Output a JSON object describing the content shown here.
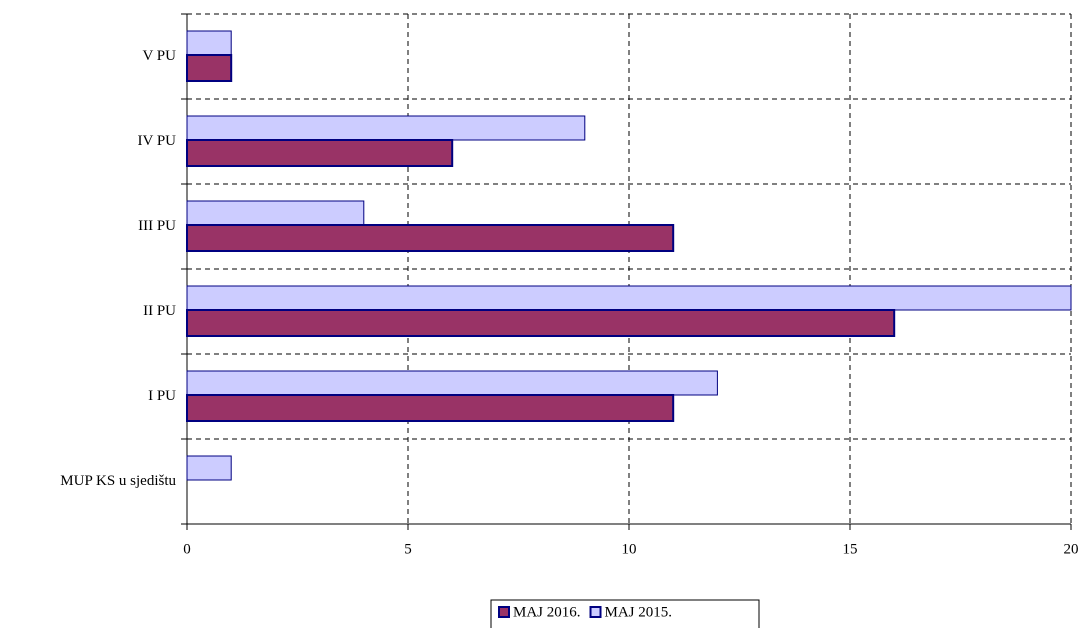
{
  "chart_data": {
    "type": "bar",
    "orientation": "horizontal",
    "categories": [
      "V PU",
      "IV PU",
      "III PU",
      "II PU",
      "I PU",
      "MUP KS u sjedištu"
    ],
    "series": [
      {
        "name": "MAJ 2015.",
        "color": "#ccccff",
        "values": [
          1,
          9,
          4,
          20,
          12,
          1
        ]
      },
      {
        "name": "MAJ 2016.",
        "color": "#993366",
        "values": [
          1,
          6,
          11,
          16,
          11,
          0
        ]
      }
    ],
    "xlim": [
      0,
      20
    ],
    "xticks": [
      0,
      5,
      10,
      15,
      20
    ],
    "grid": true,
    "legend": "bottom"
  }
}
